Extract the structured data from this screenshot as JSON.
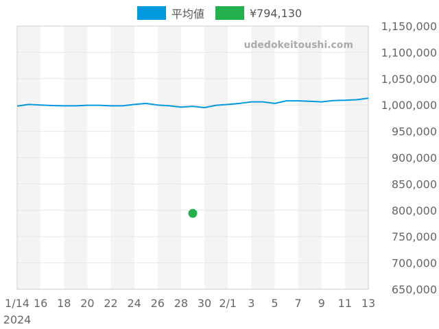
{
  "legend": {
    "avg_label": "平均値",
    "point_label": "¥794,130"
  },
  "watermark": "udedokeitoushi.com",
  "colors": {
    "avg": "#0099e0",
    "point": "#22b14c",
    "band": "#f4f4f4",
    "grid": "#e6e6e6",
    "axis_text": "#666666"
  },
  "chart_data": {
    "type": "line",
    "title": "",
    "xlabel": "",
    "ylabel": "",
    "ylim": [
      650000,
      1150000
    ],
    "yticks": [
      650000,
      700000,
      750000,
      800000,
      850000,
      900000,
      950000,
      1000000,
      1050000,
      1100000,
      1150000
    ],
    "ytick_labels": [
      "650,000",
      "700,000",
      "750,000",
      "800,000",
      "850,000",
      "900,000",
      "950,000",
      "1,000,000",
      "1,050,000",
      "1,100,000",
      "1,150,000"
    ],
    "x_range": [
      "2024-01-14",
      "2024-02-13"
    ],
    "xticks": [
      {
        "date": "2024-01-14",
        "label": "1/14",
        "sublabel": "2024"
      },
      {
        "date": "2024-01-16",
        "label": "16"
      },
      {
        "date": "2024-01-18",
        "label": "18"
      },
      {
        "date": "2024-01-20",
        "label": "20"
      },
      {
        "date": "2024-01-22",
        "label": "22"
      },
      {
        "date": "2024-01-24",
        "label": "24"
      },
      {
        "date": "2024-01-26",
        "label": "26"
      },
      {
        "date": "2024-01-28",
        "label": "28"
      },
      {
        "date": "2024-01-30",
        "label": "30"
      },
      {
        "date": "2024-02-01",
        "label": "2/1"
      },
      {
        "date": "2024-02-03",
        "label": "3"
      },
      {
        "date": "2024-02-05",
        "label": "5"
      },
      {
        "date": "2024-02-07",
        "label": "7"
      },
      {
        "date": "2024-02-09",
        "label": "9"
      },
      {
        "date": "2024-02-11",
        "label": "11"
      },
      {
        "date": "2024-02-13",
        "label": "13"
      }
    ],
    "shaded_bands": [
      [
        "2024-01-14",
        "2024-01-16"
      ],
      [
        "2024-01-18",
        "2024-01-20"
      ],
      [
        "2024-01-22",
        "2024-01-24"
      ],
      [
        "2024-01-26",
        "2024-01-28"
      ],
      [
        "2024-01-30",
        "2024-02-01"
      ],
      [
        "2024-02-03",
        "2024-02-05"
      ],
      [
        "2024-02-07",
        "2024-02-09"
      ],
      [
        "2024-02-11",
        "2024-02-13"
      ]
    ],
    "series": [
      {
        "name": "平均値",
        "color": "#0099e0",
        "points": [
          [
            "2024-01-14",
            998000
          ],
          [
            "2024-01-15",
            1001000
          ],
          [
            "2024-01-16",
            1000000
          ],
          [
            "2024-01-17",
            999000
          ],
          [
            "2024-01-18",
            998500
          ],
          [
            "2024-01-19",
            998500
          ],
          [
            "2024-01-20",
            999500
          ],
          [
            "2024-01-21",
            999500
          ],
          [
            "2024-01-22",
            998500
          ],
          [
            "2024-01-23",
            998500
          ],
          [
            "2024-01-24",
            1001000
          ],
          [
            "2024-01-25",
            1003000
          ],
          [
            "2024-01-26",
            1000000
          ],
          [
            "2024-01-27",
            998500
          ],
          [
            "2024-01-28",
            996000
          ],
          [
            "2024-01-29",
            997500
          ],
          [
            "2024-01-30",
            995000
          ],
          [
            "2024-01-31",
            999500
          ],
          [
            "2024-02-01",
            1001000
          ],
          [
            "2024-02-02",
            1003000
          ],
          [
            "2024-02-03",
            1006000
          ],
          [
            "2024-02-04",
            1006000
          ],
          [
            "2024-02-05",
            1003000
          ],
          [
            "2024-02-06",
            1008000
          ],
          [
            "2024-02-07",
            1008000
          ],
          [
            "2024-02-08",
            1007000
          ],
          [
            "2024-02-09",
            1006000
          ],
          [
            "2024-02-10",
            1008500
          ],
          [
            "2024-02-11",
            1009000
          ],
          [
            "2024-02-12",
            1010000
          ],
          [
            "2024-02-13",
            1013000
          ]
        ]
      },
      {
        "name": "¥794,130",
        "color": "#22b14c",
        "points": [
          [
            "2024-01-29",
            794130
          ]
        ]
      }
    ]
  }
}
